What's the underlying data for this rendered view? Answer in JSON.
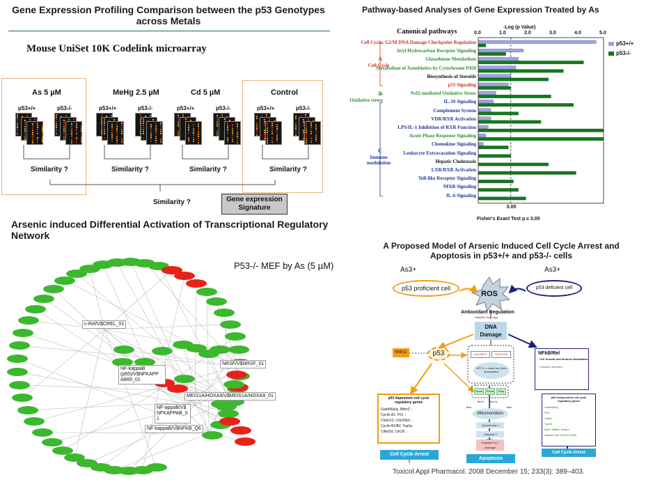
{
  "panels": {
    "microarray": {
      "title": "Gene Expression Profiling Comparison between the p53 Genotypes across Metals",
      "subtitle": "Mouse UniSet 10K Codelink microarray",
      "conditions": [
        {
          "label": "As 5 µM",
          "wt": "p53+/+",
          "ko": "p53-/-",
          "similarity": "Similarity ?"
        },
        {
          "label": "MeHg 2.5 µM",
          "wt": "p53+/+",
          "ko": "p53-/-",
          "similarity": "Similarity ?"
        },
        {
          "label": "Cd 5 µM",
          "wt": "p53+/+",
          "ko": "p53-/-",
          "similarity": "Similarity ?"
        },
        {
          "label": "Control",
          "wt": "p53+/+",
          "ko": "p53-/-",
          "similarity": "Similarity ?"
        }
      ],
      "overall_similarity": "Similarity ?",
      "signature": "Gene expression Signature"
    },
    "network": {
      "title": "Arsenic induced Differential Activation of Transcriptional Regulatory Network",
      "caption": "P53-/- MEF by As (5 µM)",
      "tf_nodes": [
        "c-Rel/V$CREL_01",
        "NF-kappaB (p65)/V$NFKAPP AB65_01",
        "NF-appaB/V$ NFKAPPAB_0 1",
        "NF-kappaB/V$NFKB_Q6",
        "NRSF/V$NRSF_01",
        "MEIS1A/HOXA9/V$MEIS1A/HOXA9_01"
      ],
      "colors": {
        "up": "#3cb82e",
        "down": "#e8221a"
      }
    },
    "model": {
      "title": "A Proposed Model of Arsenic Induced Cell Cycle Arrest and Apoptosis in p53+/+ and p53-/- cells",
      "as_left": "As3+",
      "as_right": "As3+",
      "p53_proficient": "p53 proficient cell",
      "p53_deficient": "p53 deficient cell",
      "ros": "ROS",
      "antioxidant": "Antioxidant Regulation",
      "antioxidant_genes": "Gsta3/4, Ho1, Nqo",
      "dna_damage": "DNA Damage",
      "mdm2": "Mdm2",
      "p53": "p53",
      "mapk": "p38 MAPK",
      "sapk": "SAPK/JNK",
      "atf": "ATF-2, c-Jun/c-fos Gene transcription",
      "nfkb": "NFkB/Rel",
      "cell_growth": "Cell Growth and Immune Modulation",
      "cytokine": "Cytokine alteration",
      "noxa": "Noxa",
      "puma": "Puma",
      "perp": "Perp",
      "bcl2": "Bcl-2",
      "bclxl": "Bcl-xL",
      "bak": "Bak",
      "bax": "Bax",
      "mito": "Mitochondrion",
      "cytc": "Cytochrome c",
      "casp9": "Caspase 9",
      "casp37": "Caspase 3,6,7 cleavage",
      "dep_title": "p53 dependent cell cycle regulatory genes",
      "dep_genes": [
        "Gadd45a/g, Mdm2 ↑",
        "Cyclin A1, P21 ↑",
        "Chek1/2, Cdc25b/c ↓",
        "Cyclin B1/B2, Top2a",
        "Cdkn2d, Cdc20 ↓"
      ],
      "indep_title": "p53 independent cell cycle regulatory genes",
      "indep_genes": [
        "Gadd45a/g",
        "P21",
        "Chek1",
        "Top2a",
        "Bcl6, Stat5a, Nmyc1",
        "Gabra3 and 11000C02Rik"
      ],
      "arrest_left": "Cell Cycle Arrest",
      "apoptosis": "Apoptosis",
      "arrest_right": "Cell Cycle Arrest",
      "citation": "Toxicol Appl Pharmacol. 2008 December 15; 233(3): 389–403."
    }
  },
  "chart_data": {
    "type": "bar",
    "title": "Pathway-based Analyses of Gene Expression Treated by As",
    "ylabel": "Canonical pathways",
    "xlabel": "-Log (p Value)",
    "x_ticks_top": [
      "0.0",
      "1.0",
      "2.0",
      "3.0",
      "4.0",
      "5.0"
    ],
    "x_ticks_bottom": [
      "0.05"
    ],
    "xlim": [
      0,
      5
    ],
    "threshold": 1.3,
    "footnote": "Fisher's Exact Test p ≤ 0.05",
    "group_labels": [
      {
        "letter": "A",
        "name": "Cell Cycle"
      },
      {
        "letter": "B",
        "name": "Oxidative stress"
      },
      {
        "letter": "C",
        "name": "Immune modulation"
      }
    ],
    "categories": [
      "Cell Cycle: G2/M DNA Damage Checkpoint Regulation",
      "Aryl Hydrocarbon Receptor Signaling",
      "Glutathione Metabolism",
      "Metabolism of Xenobiotics by Cytochrome P450",
      "Biosynthesis of Steroids",
      "p53 Signaling",
      "Nrf2-mediated Oxidative Stress",
      "IL-10 Signaling",
      "Complement System",
      "VDR/RXR Activation",
      "LPS/IL-1 Inhibition of RXR Function",
      "Acute Phase Response Signaling",
      "Chemokine Signaling",
      "Leukocyte Extravasation Signaling",
      "Hepatic Cholestasis",
      "LXR/RXR Activation",
      "Toll-like Receptor Signaling",
      "NFkB Signaling",
      "IL-6 Signaling"
    ],
    "label_colors": [
      "#c0392b",
      "#2f8f2f",
      "#2f8f2f",
      "#2f8f2f",
      "#111111",
      "#c0392b",
      "#2f8f2f",
      "#1f3a9a",
      "#1f3a9a",
      "#1f3a9a",
      "#1f3a9a",
      "#2f8f2f",
      "#1f3a9a",
      "#1f3a9a",
      "#111111",
      "#1f3a9a",
      "#1f3a9a",
      "#1f3a9a",
      "#1f3a9a"
    ],
    "series": [
      {
        "name": "p53+/+",
        "color": "#9ea3e8",
        "values": [
          4.7,
          1.8,
          1.6,
          1.5,
          1.3,
          1.2,
          0.7,
          0.6,
          0.5,
          0.5,
          0.4,
          0.3,
          0.2,
          0.0,
          0.0,
          0.0,
          0.0,
          0.0,
          0.0
        ]
      },
      {
        "name": "p53-/-",
        "color": "#0f7a1a",
        "values": [
          0.3,
          1.1,
          4.2,
          3.4,
          2.8,
          1.3,
          2.9,
          3.8,
          1.6,
          2.5,
          5.0,
          5.0,
          1.2,
          1.3,
          2.8,
          3.9,
          1.4,
          1.6,
          1.9
        ]
      }
    ]
  }
}
